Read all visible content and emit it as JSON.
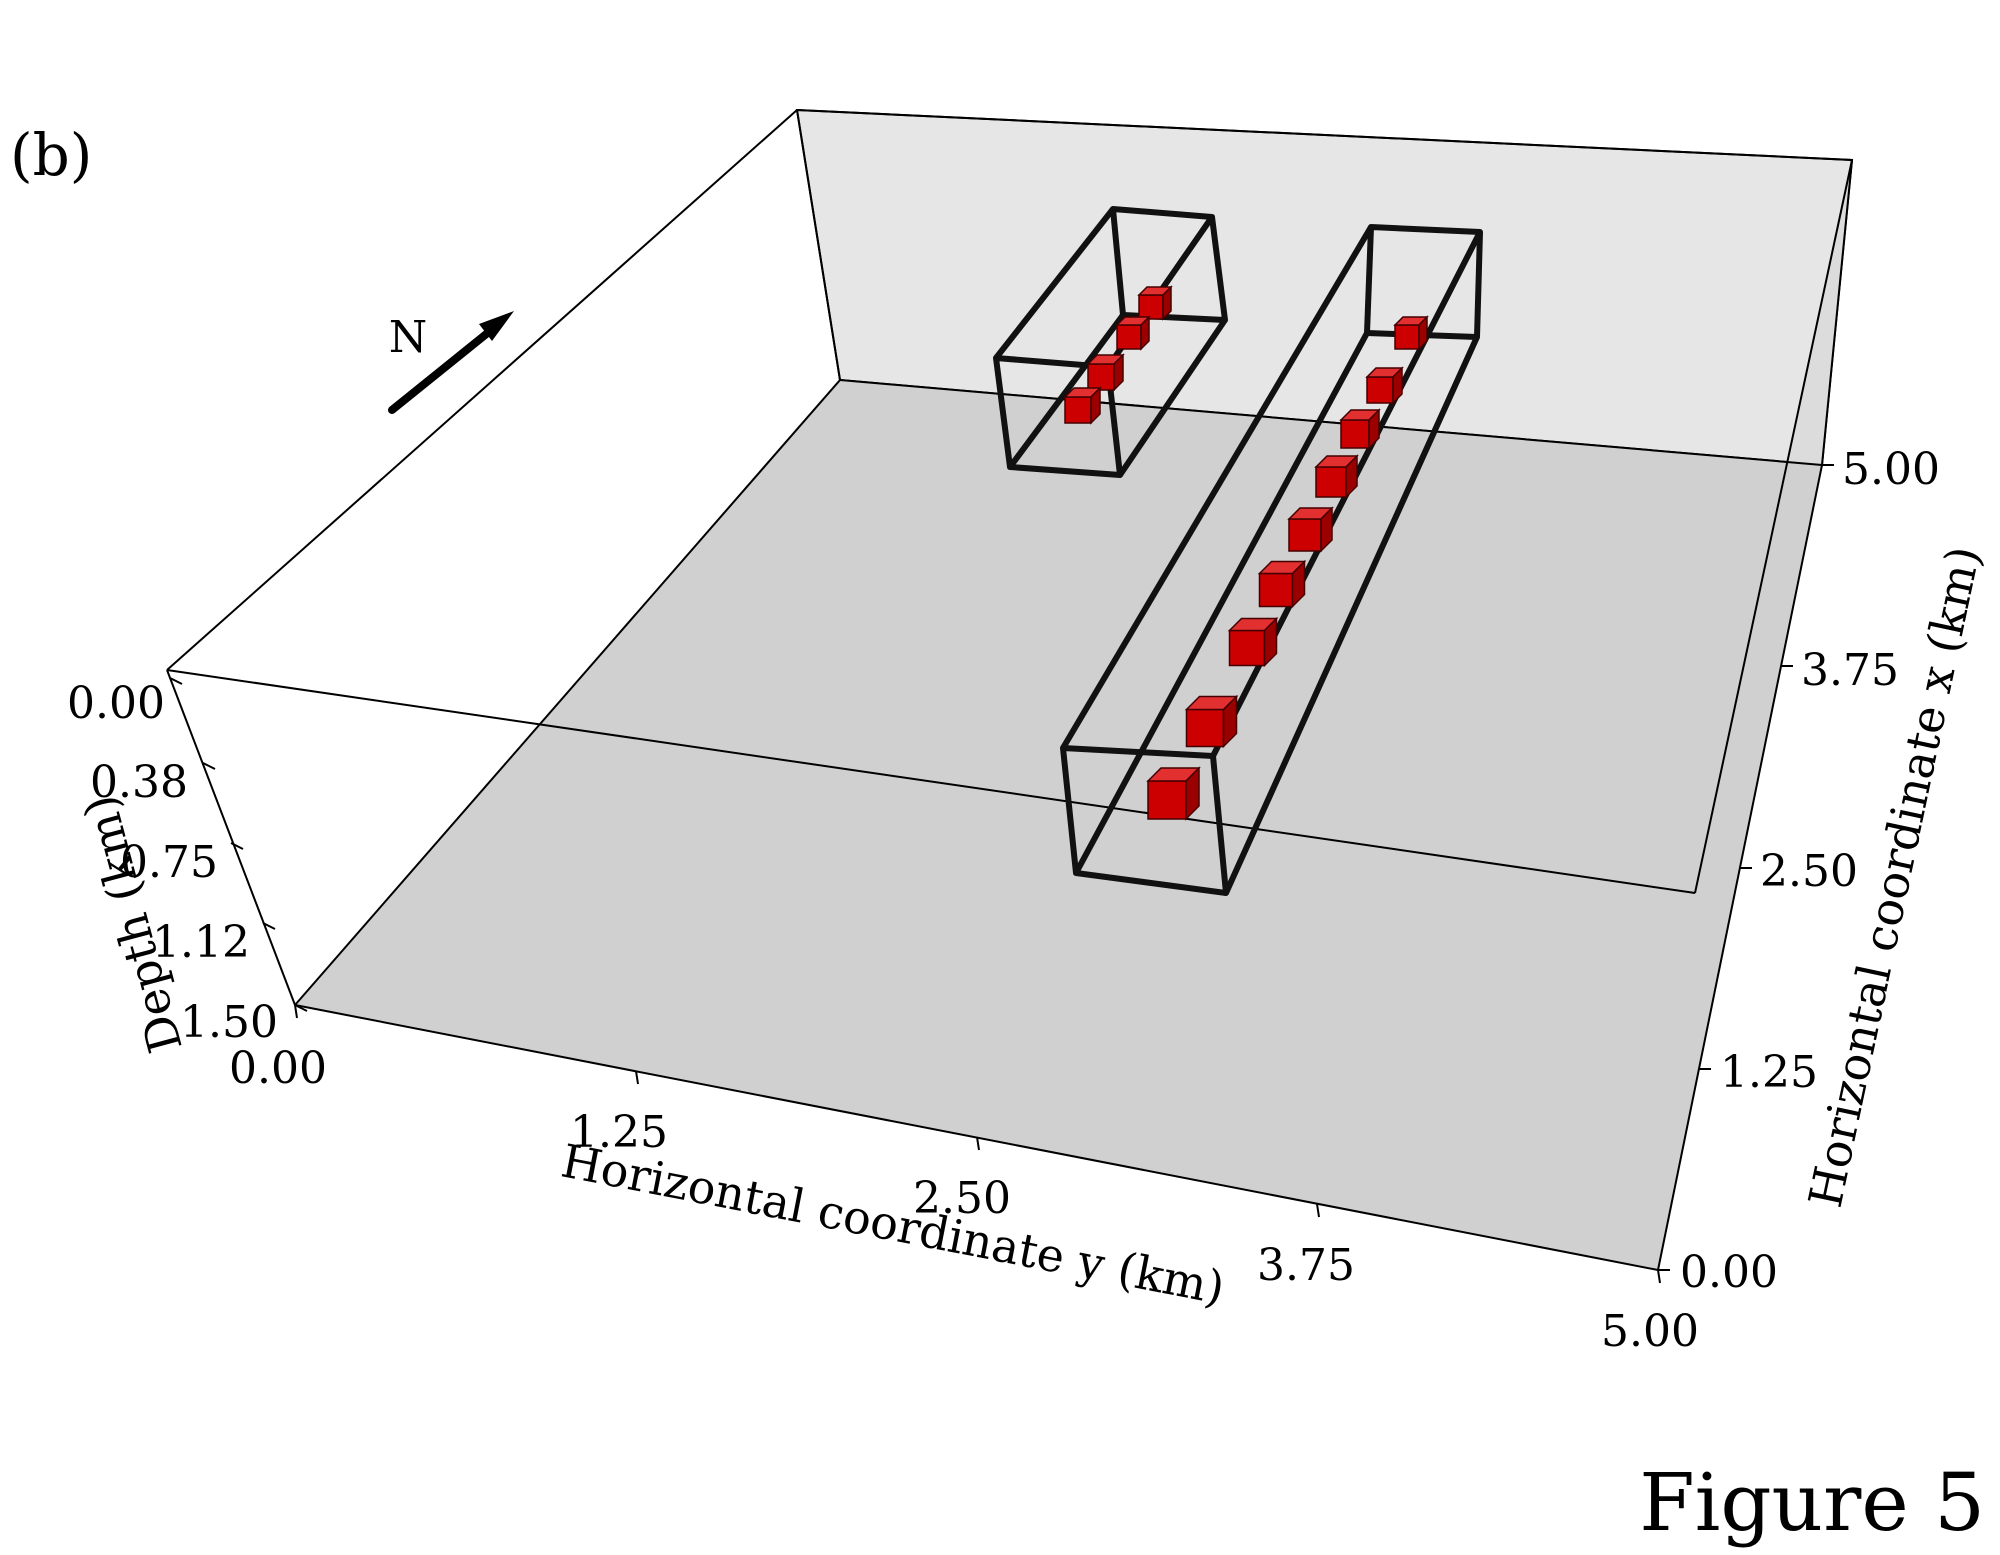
{
  "panel_label": "(b)",
  "figure_label": "Figure 5",
  "north_label": "N",
  "axes": {
    "depth": {
      "title": "Depth (km)",
      "ticks": [
        "0.00",
        "0.38",
        "0.75",
        "1.12",
        "1.50"
      ]
    },
    "y": {
      "title": "Horizontal coordinate y (km)",
      "ticks": [
        "0.00",
        "1.25",
        "2.50",
        "3.75",
        "5.00"
      ]
    },
    "x": {
      "title": "Horizontal coordinate x (km)",
      "ticks": [
        "0.00",
        "1.25",
        "2.50",
        "3.75",
        "5.00"
      ]
    }
  },
  "colors": {
    "floor": "#d0d0d0",
    "back_wall": "#e6e6e6",
    "side_wall": "#dcdcdc",
    "source_cube": "#cc0000",
    "box_outline": "#111111"
  },
  "source_groups": [
    {
      "name": "short",
      "count": 4
    },
    {
      "name": "long",
      "count": 9
    }
  ]
}
